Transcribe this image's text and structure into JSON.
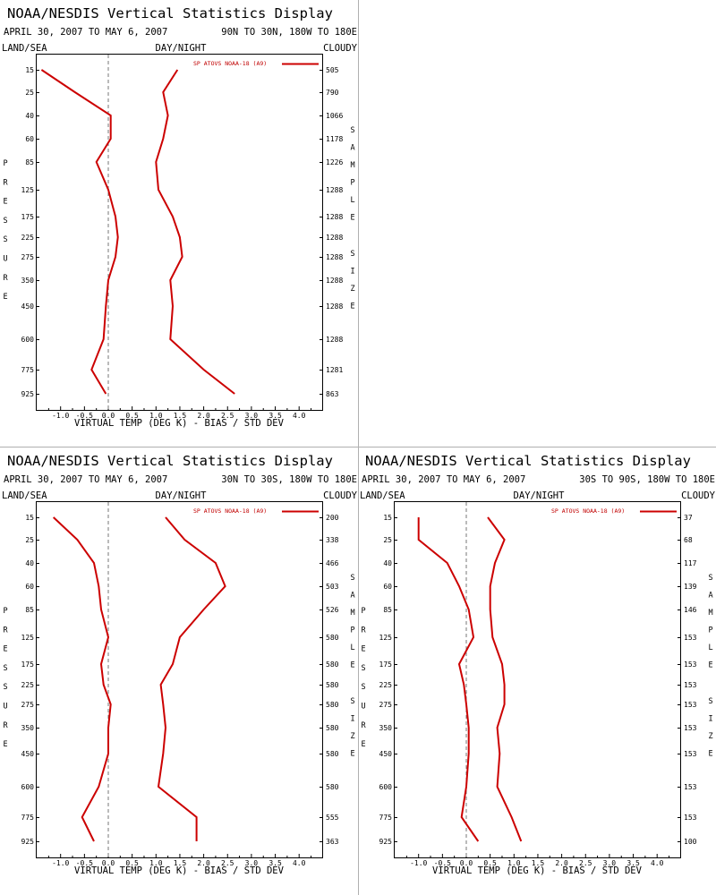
{
  "labels": {
    "left_header": "LAND/SEA",
    "center_header": "DAY/NIGHT",
    "right_header": "CLOUDY",
    "xlabel": "VIRTUAL TEMP (DEG K) - BIAS / STD DEV",
    "left_vertical": "PRESSURE",
    "right_vertical": "SAMPLE SIZE"
  },
  "colors": {
    "series": "#cc0000",
    "zero_line": "#777777",
    "frame": "#000000"
  },
  "chart_data": [
    {
      "type": "line",
      "title": "NOAA/NESDIS Vertical Statistics Display",
      "date_range": "APRIL 30, 2007 TO MAY 6, 2007",
      "region": "90N TO 30N, 180W TO 180E",
      "legend": "SP ATOVS NOAA-18 (A9)",
      "pressure_levels": [
        "15",
        "25",
        "40",
        "60",
        "85",
        "125",
        "175",
        "225",
        "275",
        "350",
        "450",
        "600",
        "775",
        "925"
      ],
      "sample_sizes": [
        "505",
        "790",
        "1066",
        "1178",
        "1226",
        "1288",
        "1288",
        "1288",
        "1288",
        "1288",
        "1288",
        "1288",
        "1281",
        "863"
      ],
      "xticks": [
        "-1.0",
        "-0.5",
        "0.0",
        "0.5",
        "1.0",
        "1.5",
        "2.0",
        "2.5",
        "3.0",
        "3.5",
        "4.0"
      ],
      "xlim": [
        -1.5,
        4.5
      ],
      "bias": [
        -1.4,
        -0.7,
        0.05,
        0.05,
        -0.25,
        0.0,
        0.15,
        0.2,
        0.15,
        0.0,
        -0.05,
        -0.1,
        -0.35,
        -0.05
      ],
      "std_dev": [
        1.45,
        1.15,
        1.25,
        1.15,
        1.0,
        1.05,
        1.35,
        1.5,
        1.55,
        1.3,
        1.35,
        1.3,
        2.0,
        2.65
      ]
    },
    {
      "type": "line",
      "title": "NOAA/NESDIS Vertical Statistics Display",
      "date_range": "APRIL 30, 2007 TO MAY 6, 2007",
      "region": "30N TO 30S, 180W TO 180E",
      "legend": "SP ATOVS NOAA-18 (A9)",
      "pressure_levels": [
        "15",
        "25",
        "40",
        "60",
        "85",
        "125",
        "175",
        "225",
        "275",
        "350",
        "450",
        "600",
        "775",
        "925"
      ],
      "sample_sizes": [
        "200",
        "338",
        "466",
        "503",
        "526",
        "580",
        "580",
        "580",
        "580",
        "580",
        "580",
        "580",
        "555",
        "363"
      ],
      "xticks": [
        "-1.0",
        "-0.5",
        "0.0",
        "0.5",
        "1.0",
        "1.5",
        "2.0",
        "2.5",
        "3.0",
        "3.5",
        "4.0"
      ],
      "xlim": [
        -1.5,
        4.5
      ],
      "bias": [
        -1.15,
        -0.65,
        -0.3,
        -0.2,
        -0.15,
        0.0,
        -0.15,
        -0.1,
        0.05,
        0.0,
        0.0,
        -0.2,
        -0.55,
        -0.3
      ],
      "std_dev": [
        1.2,
        1.6,
        2.25,
        2.45,
        2.0,
        1.5,
        1.35,
        1.1,
        1.15,
        1.2,
        1.15,
        1.05,
        1.85,
        1.85
      ]
    },
    {
      "type": "line",
      "title": "NOAA/NESDIS Vertical Statistics Display",
      "date_range": "APRIL 30, 2007 TO MAY 6, 2007",
      "region": "30S TO 90S, 180W TO 180E",
      "legend": "SP ATOVS NOAA-18 (A9)",
      "pressure_levels": [
        "15",
        "25",
        "40",
        "60",
        "85",
        "125",
        "175",
        "225",
        "275",
        "350",
        "450",
        "600",
        "775",
        "925"
      ],
      "sample_sizes": [
        "37",
        "68",
        "117",
        "139",
        "146",
        "153",
        "153",
        "153",
        "153",
        "153",
        "153",
        "153",
        "153",
        "100"
      ],
      "xticks": [
        "-1.0",
        "-0.5",
        "0.0",
        "0.5",
        "1.0",
        "1.5",
        "2.0",
        "2.5",
        "3.0",
        "3.5",
        "4.0"
      ],
      "xlim": [
        -1.5,
        4.5
      ],
      "bias": [
        -1.0,
        -1.0,
        -0.4,
        -0.15,
        0.05,
        0.15,
        -0.15,
        -0.05,
        0.0,
        0.05,
        0.05,
        0.0,
        -0.1,
        0.25
      ],
      "std_dev": [
        0.45,
        0.8,
        0.6,
        0.5,
        0.5,
        0.55,
        0.75,
        0.8,
        0.8,
        0.65,
        0.7,
        0.65,
        0.95,
        1.15
      ]
    }
  ]
}
